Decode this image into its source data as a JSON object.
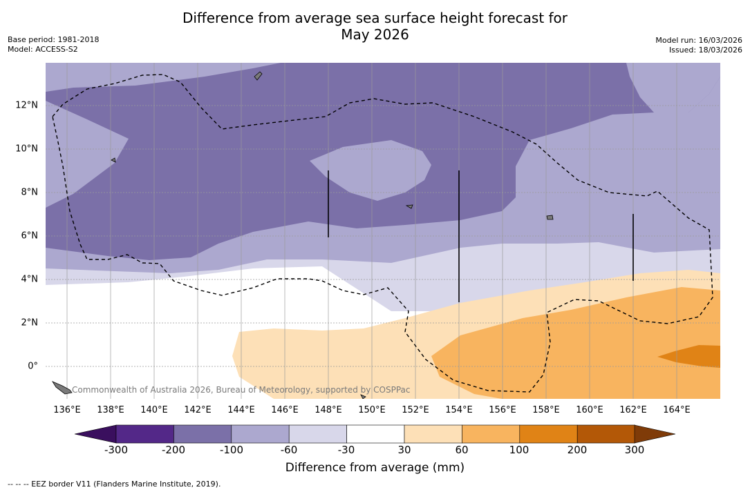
{
  "title": {
    "line1": "Difference from average sea surface height forecast for",
    "line2": "May 2026"
  },
  "meta": {
    "base_period": "Base period: 1981-2018",
    "model": "Model: ACCESS-S2",
    "model_run": "Model run: 16/03/2026",
    "issued": "Issued: 18/03/2026"
  },
  "credit": "Commonwealth of Australia 2026, Bureau of Meteorology, supported by COSPPac",
  "axes": {
    "lon_ticks": [
      "136°E",
      "138°E",
      "140°E",
      "142°E",
      "144°E",
      "146°E",
      "148°E",
      "150°E",
      "152°E",
      "154°E",
      "156°E",
      "158°E",
      "160°E",
      "162°E",
      "164°E"
    ],
    "lat_ticks": [
      "12°N",
      "10°N",
      "8°N",
      "6°N",
      "4°N",
      "2°N",
      "0°"
    ]
  },
  "colorbar": {
    "label": "Difference from average (mm)",
    "ticks": [
      "-300",
      "-200",
      "-100",
      "-60",
      "-30",
      "30",
      "60",
      "100",
      "200",
      "300"
    ],
    "colors": {
      "below_min": "#3a0f5e",
      "c1": "#532888",
      "c2": "#7b70a8",
      "c3": "#aca8cf",
      "c4": "#d8d7ea",
      "c5": "#ffffff",
      "c6": "#fde0b7",
      "c7": "#f8b45f",
      "c8": "#e08316",
      "c9": "#b35807",
      "above_max": "#7f3b08"
    }
  },
  "footnote": "--  --  -- EEZ border V11 (Flanders Marine Institute, 2019)."
}
